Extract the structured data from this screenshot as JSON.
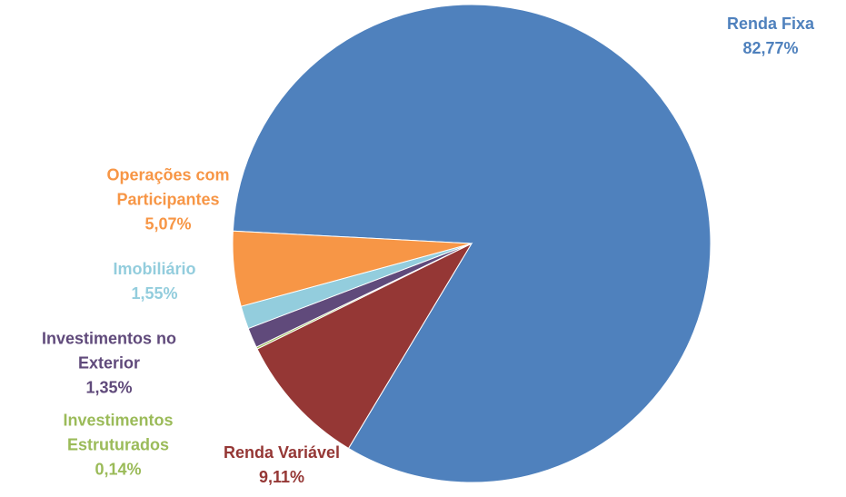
{
  "chart_data": {
    "type": "pie",
    "categories": [
      "Renda Fixa",
      "Renda Variável",
      "Investimentos Estruturados",
      "Investimentos no Exterior",
      "Imobiliário",
      "Operações com Participantes"
    ],
    "values": [
      82.77,
      9.11,
      0.14,
      1.35,
      1.55,
      5.07
    ],
    "value_labels": [
      "82,77%",
      "9,11%",
      "0,14%",
      "1,35%",
      "1,55%",
      "5,07%"
    ],
    "colors": [
      "#4f81bd",
      "#953735",
      "#9bbb59",
      "#604a7b",
      "#93cddd",
      "#f79646"
    ]
  }
}
